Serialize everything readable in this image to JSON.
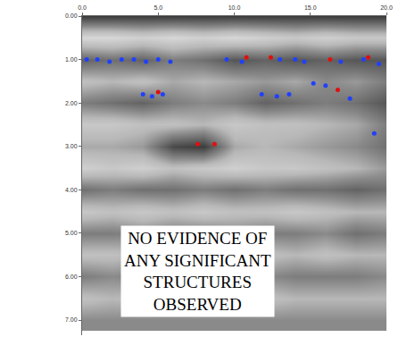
{
  "chart_data": {
    "type": "heatmap",
    "x": [
      0,
      2,
      4,
      6,
      8,
      10,
      12,
      14,
      16,
      18,
      20
    ],
    "y": [
      0,
      0.5,
      1,
      1.5,
      2,
      2.5,
      3,
      3.5,
      4,
      4.5,
      5,
      5.5,
      6,
      6.5,
      7
    ],
    "z": [
      [
        -0.7,
        -0.7,
        -0.7,
        -0.7,
        -0.7,
        -0.7,
        -0.7,
        -0.7,
        -0.7,
        -0.7,
        -0.7
      ],
      [
        0.6,
        0.6,
        0.5,
        0.6,
        0.5,
        0.6,
        0.5,
        0.4,
        0.5,
        0.4,
        0.4
      ],
      [
        -0.4,
        -0.3,
        -0.4,
        -0.2,
        -0.3,
        -0.5,
        -0.4,
        -0.5,
        -0.4,
        -0.5,
        -0.5
      ],
      [
        0.3,
        0.2,
        0.3,
        0.1,
        0.2,
        0.1,
        0.0,
        0.1,
        -0.1,
        0.0,
        -0.2
      ],
      [
        -0.2,
        -0.3,
        -0.4,
        -0.2,
        -0.1,
        -0.2,
        -0.4,
        -0.3,
        -0.2,
        -0.3,
        -0.5
      ],
      [
        0.4,
        0.4,
        0.3,
        0.3,
        0.2,
        0.4,
        0.3,
        0.3,
        0.2,
        0.1,
        -0.2
      ],
      [
        0.1,
        0.1,
        0.0,
        -0.6,
        -0.7,
        0.1,
        0.2,
        0.1,
        0.0,
        -0.1,
        -0.3
      ],
      [
        0.5,
        0.4,
        0.5,
        0.3,
        0.4,
        0.5,
        0.4,
        0.4,
        0.3,
        0.2,
        0.0
      ],
      [
        -0.3,
        -0.2,
        -0.3,
        -0.3,
        -0.2,
        -0.3,
        -0.2,
        -0.3,
        -0.3,
        -0.4,
        -0.3
      ],
      [
        0.4,
        0.3,
        0.4,
        0.3,
        0.4,
        0.3,
        0.3,
        0.4,
        0.3,
        0.2,
        0.2
      ],
      [
        -0.2,
        -0.2,
        -0.1,
        -0.2,
        -0.2,
        -0.1,
        -0.2,
        -0.2,
        -0.1,
        -0.3,
        -0.2
      ],
      [
        0.3,
        0.3,
        0.2,
        0.3,
        0.2,
        0.3,
        0.3,
        0.2,
        0.3,
        0.2,
        0.2
      ],
      [
        -0.2,
        -0.1,
        -0.2,
        -0.2,
        -0.1,
        -0.2,
        -0.1,
        -0.2,
        -0.2,
        -0.2,
        -0.1
      ],
      [
        0.3,
        0.2,
        0.3,
        0.2,
        0.3,
        0.2,
        0.3,
        0.2,
        0.2,
        0.2,
        0.2
      ],
      [
        -0.1,
        -0.1,
        -0.1,
        -0.1,
        -0.1,
        -0.1,
        -0.1,
        -0.1,
        -0.1,
        -0.1,
        -0.1
      ]
    ],
    "zlim": [
      -1,
      1
    ],
    "markers": [
      {
        "color": "#2040ff",
        "x": [
          0.3,
          1.0,
          1.8,
          2.6,
          3.4,
          4.2,
          5.0,
          5.8,
          9.5,
          10.5,
          13.0,
          14.0,
          14.6,
          17.0,
          18.5,
          19.5,
          4.0,
          4.6,
          5.3,
          11.8,
          12.8,
          13.6,
          15.2,
          16.0,
          17.6,
          19.2
        ],
        "y": [
          1.0,
          1.0,
          1.05,
          1.0,
          1.0,
          1.05,
          1.0,
          1.05,
          1.0,
          1.05,
          1.0,
          1.0,
          1.05,
          1.05,
          1.0,
          1.1,
          1.8,
          1.85,
          1.8,
          1.8,
          1.85,
          1.8,
          1.55,
          1.6,
          1.9,
          2.7
        ]
      },
      {
        "color": "#e01010",
        "x": [
          7.6,
          8.7,
          10.8,
          12.4,
          16.3,
          18.8,
          5.0,
          16.8
        ],
        "y": [
          2.95,
          2.95,
          0.95,
          0.95,
          1.0,
          0.95,
          1.75,
          1.7
        ]
      }
    ],
    "xlim": [
      0,
      20
    ],
    "ylim": [
      7.35,
      0
    ],
    "xticks": [
      {
        "value": 0,
        "label": "0.0"
      },
      {
        "value": 5,
        "label": "5.0"
      },
      {
        "value": 10,
        "label": "10.0"
      },
      {
        "value": 15,
        "label": "15.0"
      },
      {
        "value": 20,
        "label": "20.0"
      }
    ],
    "yticks": [
      {
        "value": 0,
        "label": "0.00"
      },
      {
        "value": 1,
        "label": "1.00"
      },
      {
        "value": 2,
        "label": "2.00"
      },
      {
        "value": 3,
        "label": "3.00"
      },
      {
        "value": 4,
        "label": "4.00"
      },
      {
        "value": 5,
        "label": "5.00"
      },
      {
        "value": 6,
        "label": "6.00"
      },
      {
        "value": 7,
        "label": "7.00"
      }
    ],
    "annotation": [
      "NO EVIDENCE OF",
      "ANY SIGNIFICANT",
      "STRUCTURES",
      "OBSERVED"
    ],
    "grid": false
  }
}
